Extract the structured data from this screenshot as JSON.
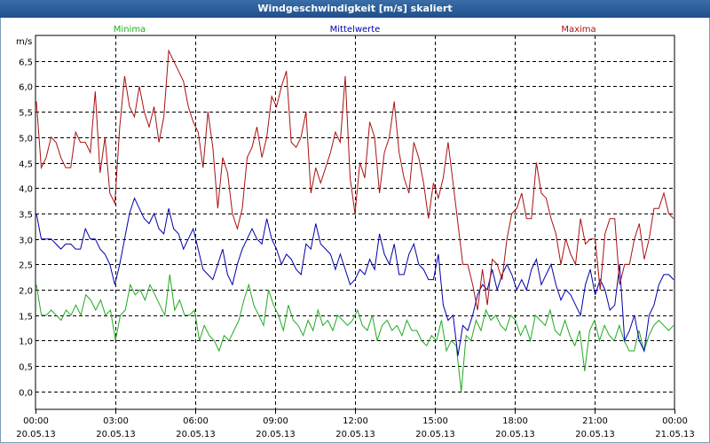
{
  "window": {
    "title": "Windgeschwindigkeit [m/s] skaliert"
  },
  "colors": {
    "minima": "#22aa22",
    "mittel": "#0000aa",
    "maxima": "#aa1111",
    "grid": "#000000"
  },
  "chart_data": {
    "type": "line",
    "title": "Windgeschwindigkeit [m/s] skaliert",
    "ylabel": "m/s",
    "xlabel": "",
    "ylim": [
      -0.35,
      7.0
    ],
    "xlim": [
      0,
      24
    ],
    "y_ticks": [
      {
        "v": 0.0,
        "label": "0,0"
      },
      {
        "v": 0.5,
        "label": "0,5"
      },
      {
        "v": 1.0,
        "label": "1,0"
      },
      {
        "v": 1.5,
        "label": "1,5"
      },
      {
        "v": 2.0,
        "label": "2,0"
      },
      {
        "v": 2.5,
        "label": "2,5"
      },
      {
        "v": 3.0,
        "label": "3,0"
      },
      {
        "v": 3.5,
        "label": "3,5"
      },
      {
        "v": 4.0,
        "label": "4,0"
      },
      {
        "v": 4.5,
        "label": "4,5"
      },
      {
        "v": 5.0,
        "label": "5,0"
      },
      {
        "v": 5.5,
        "label": "5,5"
      },
      {
        "v": 6.0,
        "label": "6,0"
      },
      {
        "v": 6.5,
        "label": "6,5"
      }
    ],
    "x_ticks": [
      {
        "v": 0,
        "time": "00:00",
        "date": "20.05.13"
      },
      {
        "v": 3,
        "time": "03:00",
        "date": "20.05.13"
      },
      {
        "v": 6,
        "time": "06:00",
        "date": "20.05.13"
      },
      {
        "v": 9,
        "time": "09:00",
        "date": "20.05.13"
      },
      {
        "v": 12,
        "time": "12:00",
        "date": "20.05.13"
      },
      {
        "v": 15,
        "time": "15:00",
        "date": "20.05.13"
      },
      {
        "v": 18,
        "time": "18:00",
        "date": "20.05.13"
      },
      {
        "v": 21,
        "time": "21:00",
        "date": "20.05.13"
      },
      {
        "v": 24,
        "time": "00:00",
        "date": "21.05.13"
      }
    ],
    "series": [
      {
        "key": "minima",
        "name": "Minima",
        "values": [
          2.1,
          1.5,
          1.5,
          1.6,
          1.5,
          1.4,
          1.6,
          1.5,
          1.7,
          1.5,
          1.9,
          1.8,
          1.6,
          1.8,
          1.5,
          1.6,
          1.0,
          1.5,
          1.6,
          2.1,
          1.9,
          2.0,
          1.8,
          2.1,
          1.9,
          1.7,
          1.5,
          2.3,
          1.6,
          1.8,
          1.5,
          1.5,
          1.6,
          1.0,
          1.3,
          1.1,
          1.0,
          0.8,
          1.1,
          1.0,
          1.2,
          1.4,
          1.8,
          2.1,
          1.7,
          1.5,
          1.3,
          2.0,
          1.7,
          1.5,
          1.2,
          1.7,
          1.4,
          1.3,
          1.1,
          1.4,
          1.2,
          1.6,
          1.3,
          1.4,
          1.2,
          1.5,
          1.4,
          1.3,
          1.4,
          1.6,
          1.3,
          1.2,
          1.5,
          1.0,
          1.3,
          1.4,
          1.2,
          1.3,
          1.1,
          1.4,
          1.2,
          1.2,
          1.0,
          0.9,
          1.1,
          1.0,
          1.4,
          0.8,
          1.0,
          0.9,
          0.0,
          1.1,
          1.0,
          1.4,
          1.2,
          1.6,
          1.4,
          1.5,
          1.3,
          1.2,
          1.5,
          1.4,
          1.1,
          1.3,
          1.0,
          1.5,
          1.4,
          1.3,
          1.6,
          1.2,
          1.1,
          1.4,
          1.1,
          0.9,
          1.2,
          0.4,
          1.2,
          1.4,
          1.0,
          1.3,
          1.1,
          1.0,
          1.3,
          1.0,
          0.8,
          0.8,
          1.2,
          0.8,
          1.1,
          1.3,
          1.4,
          1.3,
          1.2,
          1.3
        ],
        "valuesFromLeft": true
      },
      {
        "key": "mittel",
        "name": "Mittelwerte",
        "values": [
          3.5,
          3.0,
          3.0,
          3.0,
          2.9,
          2.8,
          2.9,
          2.9,
          2.8,
          2.8,
          3.2,
          3.0,
          3.0,
          2.8,
          2.7,
          2.5,
          2.1,
          2.5,
          3.0,
          3.5,
          3.8,
          3.6,
          3.4,
          3.3,
          3.5,
          3.2,
          3.1,
          3.6,
          3.2,
          3.1,
          2.8,
          3.0,
          3.2,
          2.8,
          2.4,
          2.3,
          2.2,
          2.5,
          2.8,
          2.3,
          2.1,
          2.5,
          2.8,
          3.0,
          3.2,
          3.0,
          2.9,
          3.4,
          3.0,
          2.8,
          2.5,
          2.7,
          2.6,
          2.4,
          2.3,
          2.9,
          2.8,
          3.3,
          2.9,
          2.8,
          2.7,
          2.4,
          2.7,
          2.4,
          2.1,
          2.2,
          2.4,
          2.3,
          2.6,
          2.4,
          3.1,
          2.7,
          2.5,
          2.9,
          2.3,
          2.3,
          2.7,
          2.9,
          2.5,
          2.4,
          2.2,
          2.2,
          2.7,
          1.7,
          1.4,
          1.5,
          0.7,
          1.3,
          1.2,
          1.5,
          1.9,
          2.1,
          2.0,
          2.4,
          2.0,
          2.3,
          2.5,
          2.3,
          2.0,
          2.2,
          2.0,
          2.4,
          2.6,
          2.1,
          2.3,
          2.5,
          2.1,
          1.8,
          2.0,
          1.9,
          1.7,
          1.5,
          2.1,
          2.4,
          1.9,
          2.2,
          2.0,
          1.6,
          1.7,
          2.5,
          1.0,
          1.2,
          1.5,
          1.0,
          0.8,
          1.5,
          1.7,
          2.1,
          2.3,
          2.3,
          2.2
        ],
        "valuesFromLeft": true
      },
      {
        "key": "maxima",
        "name": "Maxima",
        "values": [
          5.7,
          4.4,
          4.6,
          5.0,
          4.9,
          4.6,
          4.4,
          4.4,
          5.1,
          4.9,
          4.9,
          4.7,
          5.9,
          4.3,
          5.0,
          3.9,
          3.7,
          5.2,
          6.2,
          5.6,
          5.4,
          6.0,
          5.5,
          5.2,
          5.6,
          4.9,
          5.4,
          6.7,
          6.5,
          6.3,
          6.1,
          5.6,
          5.3,
          5.1,
          4.4,
          5.5,
          4.8,
          3.6,
          4.6,
          4.3,
          3.5,
          3.2,
          3.6,
          4.6,
          4.8,
          5.2,
          4.6,
          5.0,
          5.8,
          5.6,
          6.0,
          6.3,
          4.9,
          4.8,
          5.0,
          5.5,
          3.9,
          4.4,
          4.1,
          4.4,
          4.7,
          5.1,
          4.9,
          6.2,
          4.2,
          3.5,
          4.5,
          4.2,
          5.3,
          5.0,
          3.9,
          4.7,
          5.0,
          5.7,
          4.7,
          4.2,
          3.9,
          4.9,
          4.6,
          4.1,
          3.4,
          4.1,
          3.8,
          4.2,
          4.9,
          4.1,
          3.3,
          2.5,
          2.5,
          2.1,
          1.6,
          2.4,
          1.7,
          2.6,
          2.5,
          2.2,
          3.0,
          3.5,
          3.6,
          3.9,
          3.4,
          3.4,
          4.5,
          3.9,
          3.8,
          3.4,
          3.1,
          2.5,
          3.0,
          2.7,
          2.5,
          3.4,
          2.9,
          3.0,
          3.0,
          2.0,
          3.1,
          3.4,
          3.4,
          2.1,
          2.5,
          2.5,
          3.0,
          3.3,
          2.6,
          3.0,
          3.6,
          3.6,
          3.9,
          3.5,
          3.4
        ],
        "valuesFromLeft": true
      }
    ]
  }
}
